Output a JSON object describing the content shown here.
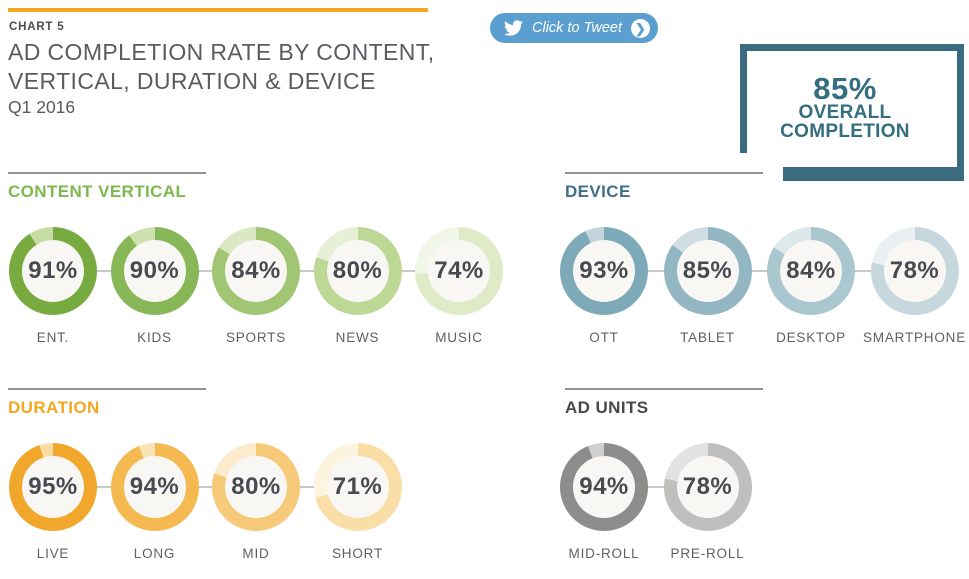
{
  "header": {
    "kicker": "CHART 5",
    "title_line1": "AD COMPLETION RATE BY CONTENT,",
    "title_line2": "VERTICAL, DURATION & DEVICE",
    "subtitle": "Q1 2016",
    "accent_color": "#f5a71f"
  },
  "tweet_button": {
    "label": "Click to Tweet",
    "icon": "twitter-bird-icon",
    "arrow_glyph": "❯",
    "bg_color": "#5b9ed0"
  },
  "overall": {
    "value": "85%",
    "line1": "OVERALL",
    "line2": "COMPLETION",
    "color": "#356d81"
  },
  "chart_data": [
    {
      "type": "donut-group",
      "title": "CONTENT VERTICAL",
      "title_color": "#7cb84e",
      "categories": [
        "ENT.",
        "KIDS",
        "SPORTS",
        "NEWS",
        "MUSIC"
      ],
      "values": [
        91,
        90,
        84,
        80,
        74
      ],
      "unit": "%",
      "ring_colors": [
        "#77ab3f",
        "#88b757",
        "#a0c673",
        "#bdd795",
        "#dfeac7"
      ],
      "track_colors": [
        "#c6dca4",
        "#cfe1b1",
        "#dbe8c4",
        "#e7efd6",
        "#f2f6e8"
      ]
    },
    {
      "type": "donut-group",
      "title": "DEVICE",
      "title_color": "#3e7089",
      "categories": [
        "OTT",
        "TABLET",
        "DESKTOP",
        "SMARTPHONE"
      ],
      "values": [
        93,
        85,
        84,
        78
      ],
      "unit": "%",
      "ring_colors": [
        "#7ea9b9",
        "#92b6c2",
        "#aac6cf",
        "#c6d8de"
      ],
      "track_colors": [
        "#c3d5dc",
        "#cfdde3",
        "#dde8eb",
        "#eaf0f2"
      ]
    },
    {
      "type": "donut-group",
      "title": "DURATION",
      "title_color": "#f5a71f",
      "categories": [
        "LIVE",
        "LONG",
        "MID",
        "SHORT"
      ],
      "values": [
        95,
        94,
        80,
        71
      ],
      "unit": "%",
      "ring_colors": [
        "#f1a72c",
        "#f4b950",
        "#f7ca7a",
        "#f9dfa7"
      ],
      "track_colors": [
        "#f9dca1",
        "#fae4b6",
        "#fceccd",
        "#fdf4e0"
      ]
    },
    {
      "type": "donut-group",
      "title": "AD UNITS",
      "title_color": "#47484d",
      "categories": [
        "MID-ROLL",
        "PRE-ROLL"
      ],
      "values": [
        94,
        78
      ],
      "unit": "%",
      "ring_colors": [
        "#8d8d8b",
        "#bfbfbd"
      ],
      "track_colors": [
        "#cfcfcd",
        "#e2e2e0"
      ]
    }
  ]
}
